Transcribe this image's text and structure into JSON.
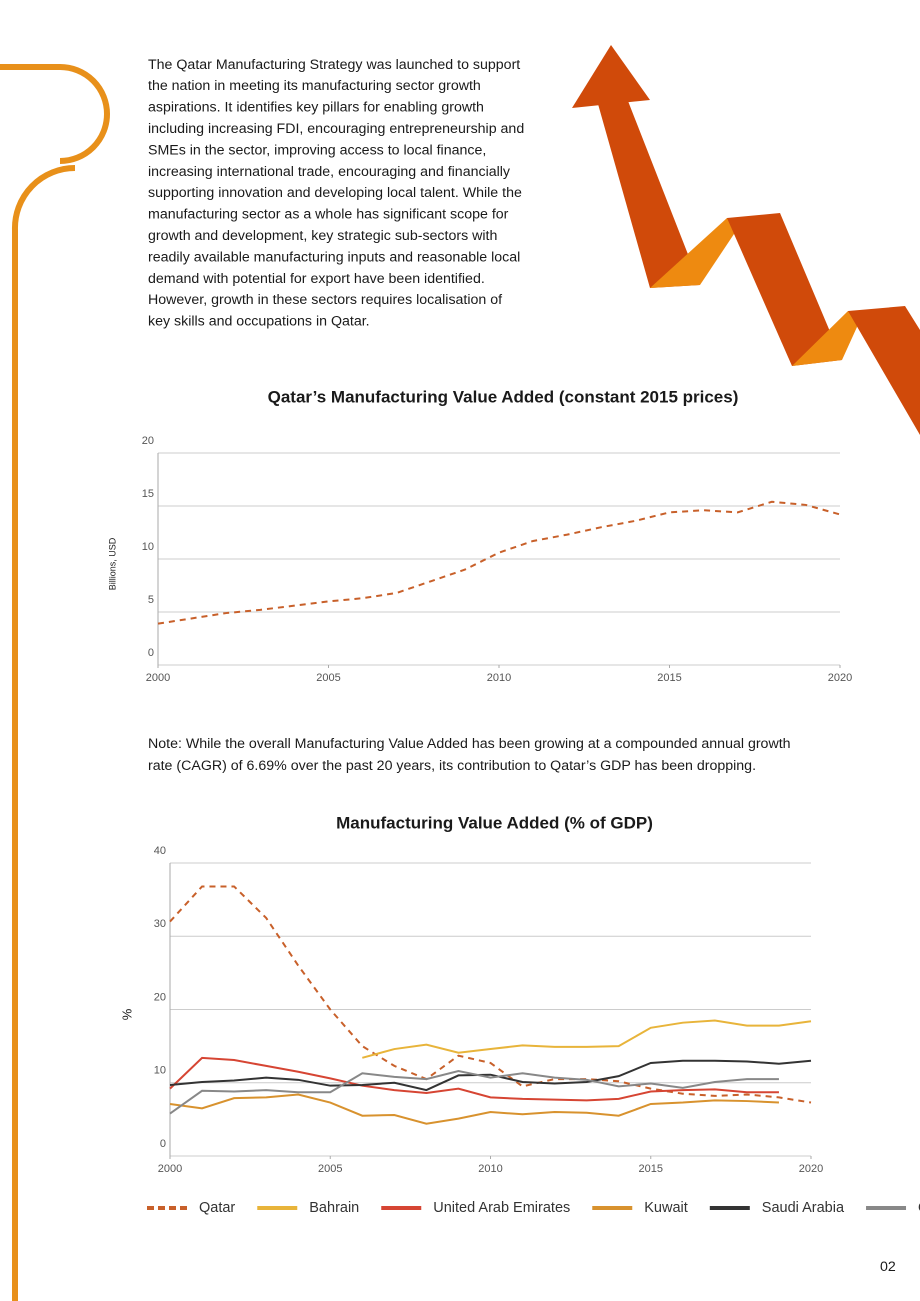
{
  "body": {
    "paragraph": [
      "The Qatar Manufacturing Strategy was launched to support",
      "the nation in meeting its manufacturing sector growth",
      "aspirations. It identifies key pillars for enabling growth",
      "including increasing FDI, encouraging entrepreneurship and",
      "SMEs in the sector, improving access to local finance,",
      "increasing international trade, encouraging and financially",
      "supporting innovation and developing local talent. While the",
      "manufacturing sector as a whole has significant scope for",
      "growth and development, key strategic sub-sectors with",
      "readily available manufacturing inputs and reasonable local",
      "demand with potential for export have been identified.",
      "However, growth in these sectors requires localisation of",
      "key skills and occupations in Qatar."
    ],
    "note": [
      "Note: While the overall Manufacturing Value Added has been growing at a compounded annual growth",
      "rate (CAGR) of 6.69% over the past 20 years, its contribution to Qatar’s GDP has been dropping."
    ]
  },
  "page_number": "02",
  "chart_data": [
    {
      "type": "line",
      "title": "Qatar’s Manufacturing Value Added (constant 2015 prices)",
      "y_label": "Billions, USD",
      "x": [
        2000,
        2001,
        2002,
        2003,
        2004,
        2005,
        2006,
        2007,
        2008,
        2009,
        2010,
        2011,
        2012,
        2013,
        2014,
        2015,
        2016,
        2017,
        2018,
        2019,
        2020
      ],
      "values": [
        3.9,
        4.4,
        4.9,
        5.2,
        5.6,
        6.0,
        6.3,
        6.8,
        7.9,
        9.0,
        10.6,
        11.7,
        12.3,
        13.0,
        13.6,
        14.4,
        14.6,
        14.4,
        15.4,
        15.1,
        14.2
      ],
      "color": "#c8602a",
      "dashed": true,
      "xlim": [
        2000,
        2020
      ],
      "xticks": [
        2000,
        2005,
        2010,
        2015,
        2020
      ],
      "ylim": [
        0,
        20
      ],
      "yticks": [
        0,
        5,
        10,
        15,
        20
      ],
      "grid": true
    },
    {
      "type": "line",
      "title": "Manufacturing Value Added (% of GDP)",
      "y_label": "%",
      "x": [
        2000,
        2001,
        2002,
        2003,
        2004,
        2005,
        2006,
        2007,
        2008,
        2009,
        2010,
        2011,
        2012,
        2013,
        2014,
        2015,
        2016,
        2017,
        2018,
        2019,
        2020
      ],
      "series": [
        {
          "name": "Qatar",
          "color": "#c8602a",
          "dashed": true,
          "values": [
            32.0,
            36.8,
            36.8,
            32.5,
            26.0,
            20.0,
            15.0,
            12.3,
            10.5,
            13.7,
            12.7,
            9.5,
            10.5,
            10.5,
            10.2,
            9.2,
            8.5,
            8.2,
            8.4,
            8.0,
            7.3
          ]
        },
        {
          "name": "Bahrain",
          "color": "#e8b43a",
          "values": [
            null,
            null,
            null,
            null,
            null,
            null,
            13.4,
            14.6,
            15.2,
            14.1,
            14.6,
            15.1,
            14.9,
            14.9,
            15.0,
            17.5,
            18.2,
            18.5,
            17.8,
            17.8,
            18.4
          ]
        },
        {
          "name": "United Arab Emirates",
          "color": "#d64533",
          "values": [
            9.2,
            13.4,
            13.1,
            12.3,
            11.5,
            10.6,
            9.6,
            9.0,
            8.6,
            9.2,
            8.0,
            7.8,
            7.7,
            7.6,
            7.8,
            8.8,
            9.0,
            9.1,
            8.7,
            8.7,
            null
          ]
        },
        {
          "name": "Kuwait",
          "color": "#d8922e",
          "values": [
            7.1,
            6.5,
            7.9,
            8.0,
            8.4,
            7.3,
            5.5,
            5.6,
            4.4,
            5.1,
            6.0,
            5.7,
            6.0,
            5.9,
            5.5,
            7.1,
            7.3,
            7.6,
            7.5,
            7.3,
            null
          ]
        },
        {
          "name": "Saudi Arabia",
          "color": "#333333",
          "values": [
            9.7,
            10.1,
            10.3,
            10.7,
            10.4,
            9.6,
            9.7,
            10.0,
            9.0,
            11.0,
            11.1,
            10.1,
            9.9,
            10.1,
            10.9,
            12.7,
            13.0,
            13.0,
            12.9,
            12.6,
            13.0
          ]
        },
        {
          "name": "Oman",
          "color": "#888888",
          "values": [
            5.8,
            8.9,
            8.8,
            9.0,
            8.7,
            8.7,
            11.3,
            10.8,
            10.5,
            11.6,
            10.7,
            11.3,
            10.7,
            10.4,
            9.5,
            9.9,
            9.3,
            10.1,
            10.5,
            10.5,
            null
          ]
        }
      ],
      "xlim": [
        2000,
        2020
      ],
      "xticks": [
        2000,
        2005,
        2010,
        2015,
        2020
      ],
      "ylim": [
        0,
        40
      ],
      "yticks": [
        0,
        10,
        20,
        30,
        40
      ],
      "grid": true,
      "legend": "bottom"
    }
  ]
}
